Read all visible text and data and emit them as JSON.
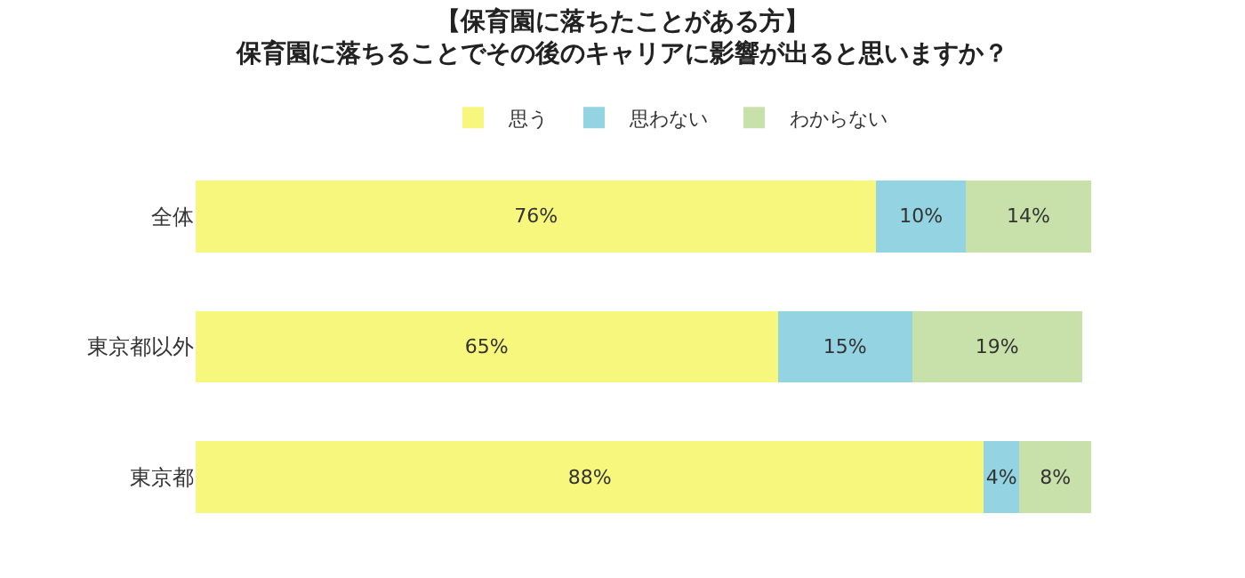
{
  "chart_data": {
    "type": "bar",
    "orientation": "horizontal",
    "stacked": true,
    "title": "【保育園に落ちたことがある方】",
    "subtitle": "保育園に落ちることでその後のキャリアに影響が出ると思いますか？",
    "categories": [
      "全体",
      "東京都以外",
      "東京都"
    ],
    "series": [
      {
        "name": "思う",
        "color": "#f7f77e",
        "values": [
          76,
          65,
          88
        ],
        "value_labels": [
          "76%",
          "65%",
          "88%"
        ]
      },
      {
        "name": "思わない",
        "color": "#93d3e2",
        "values": [
          10,
          15,
          4
        ],
        "value_labels": [
          "10%",
          "15%",
          "4%"
        ]
      },
      {
        "name": "わからない",
        "color": "#c8e0a9",
        "values": [
          14,
          19,
          8
        ],
        "value_labels": [
          "14%",
          "19%",
          "8%"
        ]
      }
    ],
    "legend": "top"
  }
}
